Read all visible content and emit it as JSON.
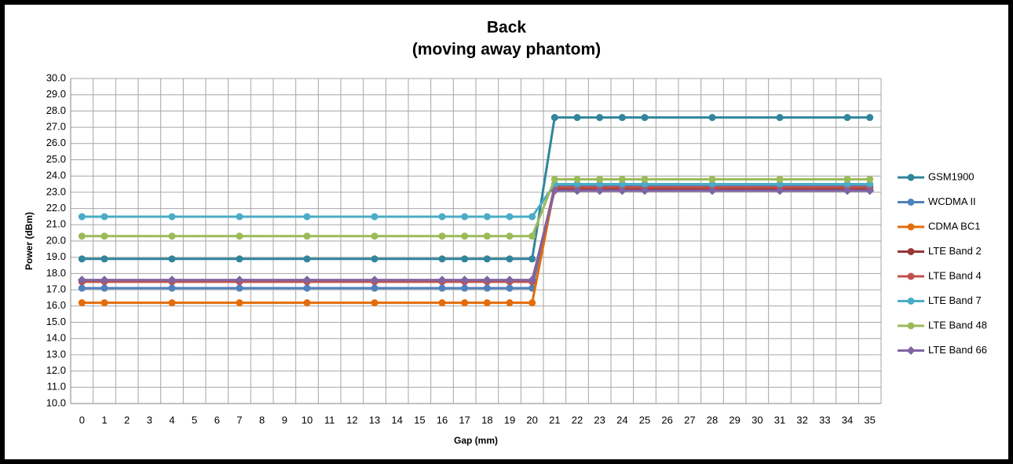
{
  "chart_data": {
    "type": "line",
    "title": "Back",
    "subtitle": "(moving away phantom)",
    "x_label": "Gap (mm)",
    "y_label": "Power (dBm)",
    "x": [
      0,
      1,
      4,
      7,
      10,
      13,
      16,
      17,
      18,
      19,
      20,
      21,
      22,
      23,
      24,
      25,
      28,
      31,
      34,
      35
    ],
    "xlim": [
      -0.5,
      35.5
    ],
    "xticks": [
      0,
      1,
      2,
      3,
      4,
      5,
      6,
      7,
      8,
      9,
      10,
      11,
      12,
      13,
      14,
      15,
      16,
      17,
      18,
      19,
      20,
      21,
      22,
      23,
      24,
      25,
      26,
      27,
      28,
      29,
      30,
      31,
      32,
      33,
      34,
      35
    ],
    "ylim": [
      10,
      30
    ],
    "yticks": [
      {
        "value": 10,
        "label": "10.0"
      },
      {
        "value": 11,
        "label": "11.0"
      },
      {
        "value": 12,
        "label": "12.0"
      },
      {
        "value": 13,
        "label": "13.0"
      },
      {
        "value": 14,
        "label": "14.0"
      },
      {
        "value": 15,
        "label": "15.0"
      },
      {
        "value": 16,
        "label": "16.0"
      },
      {
        "value": 17,
        "label": "17.0"
      },
      {
        "value": 18,
        "label": "18.0"
      },
      {
        "value": 19,
        "label": "19.0"
      },
      {
        "value": 20,
        "label": "20.0"
      },
      {
        "value": 21,
        "label": "21.0"
      },
      {
        "value": 22,
        "label": "22.0"
      },
      {
        "value": 23,
        "label": "23.0"
      },
      {
        "value": 24,
        "label": "24.0"
      },
      {
        "value": 25,
        "label": "25.0"
      },
      {
        "value": 26,
        "label": "26.0"
      },
      {
        "value": 27,
        "label": "27.0"
      },
      {
        "value": 28,
        "label": "28.0"
      },
      {
        "value": 29,
        "label": "29.0"
      },
      {
        "value": 30,
        "label": "30.0"
      }
    ],
    "grid": true,
    "legend": "right",
    "series": [
      {
        "name": "GSM1900",
        "color": "#31859c",
        "marker": "circle",
        "values": [
          18.9,
          18.9,
          18.9,
          18.9,
          18.9,
          18.9,
          18.9,
          18.9,
          18.9,
          18.9,
          18.9,
          27.6,
          27.6,
          27.6,
          27.6,
          27.6,
          27.6,
          27.6,
          27.6,
          27.6
        ]
      },
      {
        "name": "WCDMA II",
        "color": "#4f81bd",
        "marker": "circle",
        "values": [
          17.1,
          17.1,
          17.1,
          17.1,
          17.1,
          17.1,
          17.1,
          17.1,
          17.1,
          17.1,
          17.1,
          23.4,
          23.4,
          23.4,
          23.4,
          23.4,
          23.4,
          23.4,
          23.4,
          23.4
        ]
      },
      {
        "name": "CDMA BC1",
        "color": "#e46c0a",
        "marker": "circle",
        "values": [
          16.2,
          16.2,
          16.2,
          16.2,
          16.2,
          16.2,
          16.2,
          16.2,
          16.2,
          16.2,
          16.2,
          23.3,
          23.3,
          23.3,
          23.3,
          23.3,
          23.3,
          23.3,
          23.3,
          23.3
        ]
      },
      {
        "name": "LTE Band 2",
        "color": "#953735",
        "marker": "circle",
        "values": [
          17.5,
          17.5,
          17.5,
          17.5,
          17.5,
          17.5,
          17.5,
          17.5,
          17.5,
          17.5,
          17.5,
          23.2,
          23.2,
          23.2,
          23.2,
          23.2,
          23.2,
          23.2,
          23.2,
          23.2
        ]
      },
      {
        "name": "LTE Band 4",
        "color": "#c0504d",
        "marker": "circle",
        "values": [
          17.5,
          17.5,
          17.5,
          17.5,
          17.5,
          17.5,
          17.5,
          17.5,
          17.5,
          17.5,
          17.5,
          23.3,
          23.3,
          23.3,
          23.3,
          23.3,
          23.3,
          23.3,
          23.3,
          23.3
        ]
      },
      {
        "name": "LTE Band 7",
        "color": "#4bacc6",
        "marker": "circle",
        "values": [
          21.5,
          21.5,
          21.5,
          21.5,
          21.5,
          21.5,
          21.5,
          21.5,
          21.5,
          21.5,
          21.5,
          23.5,
          23.5,
          23.5,
          23.5,
          23.5,
          23.5,
          23.5,
          23.5,
          23.5
        ]
      },
      {
        "name": "LTE Band 48",
        "color": "#9bbb59",
        "marker": "circle",
        "values": [
          20.3,
          20.3,
          20.3,
          20.3,
          20.3,
          20.3,
          20.3,
          20.3,
          20.3,
          20.3,
          20.3,
          23.8,
          23.8,
          23.8,
          23.8,
          23.8,
          23.8,
          23.8,
          23.8,
          23.8
        ]
      },
      {
        "name": "LTE Band 66",
        "color": "#8064a2",
        "marker": "diamond",
        "values": [
          17.6,
          17.6,
          17.6,
          17.6,
          17.6,
          17.6,
          17.6,
          17.6,
          17.6,
          17.6,
          17.6,
          23.1,
          23.1,
          23.1,
          23.1,
          23.1,
          23.1,
          23.1,
          23.1,
          23.1
        ]
      }
    ]
  }
}
